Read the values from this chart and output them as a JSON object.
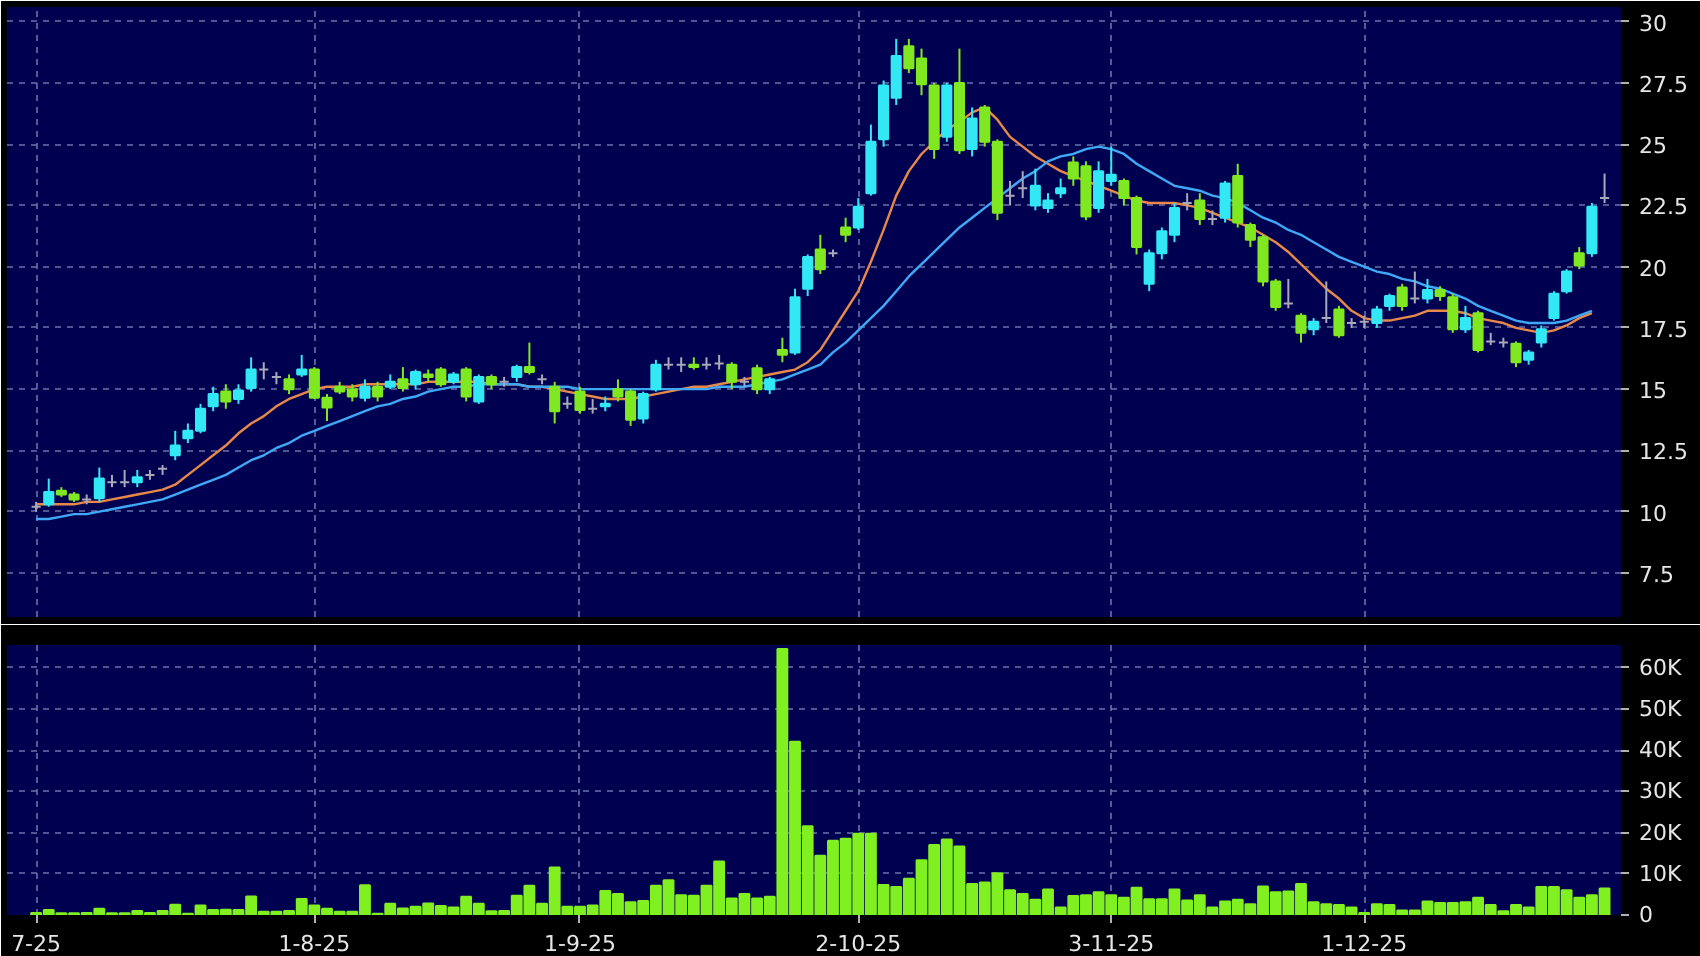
{
  "chart_data": [
    {
      "type": "candlestick",
      "categories": [
        null,
        null,
        null,
        null,
        null,
        null,
        null,
        null,
        null,
        null,
        null,
        null,
        null,
        null,
        null,
        null,
        null,
        null,
        null,
        null,
        null,
        null,
        null,
        null,
        null,
        null,
        null,
        null,
        null,
        null,
        null,
        null,
        null,
        null,
        null,
        null,
        null,
        null,
        null,
        null,
        null,
        null,
        null,
        null,
        null,
        null,
        null,
        null,
        null,
        null,
        null,
        null,
        null,
        null,
        null,
        null,
        null,
        null,
        null,
        null,
        null,
        null,
        null,
        null,
        null,
        null,
        null,
        null,
        null,
        null,
        null,
        null,
        null,
        null,
        null,
        null,
        null,
        null,
        null,
        null,
        null,
        null,
        null,
        null,
        null,
        null,
        null,
        null,
        null,
        null,
        null,
        null,
        null,
        null,
        null,
        null,
        null,
        null,
        null,
        null,
        null,
        null,
        null,
        null,
        null,
        null,
        null,
        null,
        null,
        null,
        null,
        null,
        null,
        null,
        null,
        null,
        null,
        null,
        null,
        null,
        null,
        null,
        null,
        null,
        null
      ],
      "ohlc": [
        [
          10.2,
          10.4,
          10.0,
          10.2
        ],
        [
          10.3,
          11.35,
          10.2,
          10.8
        ],
        [
          10.85,
          11.0,
          10.6,
          10.7
        ],
        [
          10.7,
          10.8,
          10.4,
          10.5
        ],
        [
          10.5,
          10.7,
          10.3,
          10.5
        ],
        [
          10.55,
          11.8,
          10.4,
          11.35
        ],
        [
          11.2,
          11.5,
          11.0,
          11.2
        ],
        [
          11.2,
          11.7,
          11.0,
          11.2
        ],
        [
          11.2,
          11.7,
          11.0,
          11.4
        ],
        [
          11.5,
          11.7,
          11.3,
          11.5
        ],
        [
          11.75,
          11.9,
          11.5,
          11.75
        ],
        [
          12.3,
          13.3,
          12.1,
          12.7
        ],
        [
          13.0,
          13.6,
          12.8,
          13.3
        ],
        [
          13.3,
          14.4,
          13.2,
          14.2
        ],
        [
          14.3,
          15.1,
          14.1,
          14.8
        ],
        [
          14.9,
          15.2,
          14.2,
          14.5
        ],
        [
          14.6,
          15.2,
          14.4,
          14.95
        ],
        [
          15.05,
          16.3,
          14.9,
          15.8
        ],
        [
          15.8,
          16.1,
          15.4,
          15.8
        ],
        [
          15.5,
          15.7,
          15.2,
          15.5
        ],
        [
          15.4,
          15.6,
          14.8,
          15.0
        ],
        [
          15.6,
          16.4,
          15.5,
          15.8
        ],
        [
          15.8,
          15.9,
          14.6,
          14.65
        ],
        [
          14.65,
          14.8,
          13.7,
          14.25
        ],
        [
          15.1,
          15.3,
          14.8,
          14.9
        ],
        [
          15.0,
          15.2,
          14.5,
          14.7
        ],
        [
          14.65,
          15.4,
          14.5,
          15.1
        ],
        [
          15.1,
          15.3,
          14.5,
          14.7
        ],
        [
          15.1,
          15.6,
          15.0,
          15.3
        ],
        [
          15.4,
          15.9,
          14.9,
          15.05
        ],
        [
          15.2,
          15.8,
          15.0,
          15.7
        ],
        [
          15.6,
          15.8,
          15.3,
          15.5
        ],
        [
          15.8,
          15.9,
          15.1,
          15.2
        ],
        [
          15.3,
          15.7,
          15.2,
          15.6
        ],
        [
          15.8,
          15.9,
          14.5,
          14.7
        ],
        [
          14.5,
          15.6,
          14.4,
          15.5
        ],
        [
          15.5,
          15.6,
          15.0,
          15.2
        ],
        [
          15.3,
          15.5,
          15.1,
          15.3
        ],
        [
          15.5,
          16.0,
          15.3,
          15.9
        ],
        [
          15.9,
          16.9,
          15.6,
          15.7
        ],
        [
          15.4,
          15.6,
          15.2,
          15.4
        ],
        [
          15.1,
          15.3,
          13.6,
          14.1
        ],
        [
          14.4,
          14.7,
          14.2,
          14.4
        ],
        [
          14.9,
          15.1,
          14.0,
          14.15
        ],
        [
          14.2,
          14.6,
          14.0,
          14.2
        ],
        [
          14.3,
          14.7,
          14.1,
          14.4
        ],
        [
          15.0,
          15.4,
          14.5,
          14.7
        ],
        [
          14.9,
          15.0,
          13.5,
          13.75
        ],
        [
          13.8,
          14.9,
          13.6,
          14.8
        ],
        [
          15.0,
          16.2,
          14.9,
          16.0
        ],
        [
          16.0,
          16.3,
          15.8,
          16.0
        ],
        [
          16.0,
          16.3,
          15.7,
          16.0
        ],
        [
          16.0,
          16.3,
          15.8,
          15.9
        ],
        [
          16.0,
          16.3,
          15.8,
          16.0
        ],
        [
          16.05,
          16.4,
          15.8,
          16.05
        ],
        [
          16.0,
          16.1,
          15.0,
          15.3
        ],
        [
          15.3,
          15.5,
          15.1,
          15.3
        ],
        [
          15.85,
          16.0,
          14.8,
          15.0
        ],
        [
          15.0,
          15.5,
          14.8,
          15.4
        ],
        [
          16.6,
          17.1,
          16.1,
          16.4
        ],
        [
          16.5,
          19.1,
          16.4,
          18.75
        ],
        [
          19.1,
          20.5,
          18.8,
          20.4
        ],
        [
          20.7,
          21.3,
          19.7,
          19.9
        ],
        [
          20.55,
          20.7,
          20.4,
          20.55
        ],
        [
          21.6,
          22.0,
          21.0,
          21.3
        ],
        [
          21.6,
          22.8,
          21.5,
          22.45
        ],
        [
          23.0,
          25.8,
          22.9,
          25.1
        ],
        [
          25.2,
          27.6,
          24.9,
          27.4
        ],
        [
          26.9,
          29.3,
          26.6,
          28.6
        ],
        [
          29.0,
          29.3,
          27.9,
          28.1
        ],
        [
          28.5,
          28.9,
          27.0,
          27.45
        ],
        [
          27.4,
          27.5,
          24.4,
          24.8
        ],
        [
          25.3,
          27.5,
          25.1,
          27.4
        ],
        [
          27.5,
          28.9,
          24.6,
          24.75
        ],
        [
          24.8,
          26.5,
          24.5,
          26.05
        ],
        [
          26.5,
          26.6,
          24.9,
          25.1
        ],
        [
          25.1,
          25.2,
          21.9,
          22.2
        ],
        [
          22.9,
          23.5,
          22.5,
          22.9
        ],
        [
          23.2,
          23.9,
          22.8,
          23.2
        ],
        [
          22.5,
          24.0,
          22.3,
          23.3
        ],
        [
          22.4,
          23.0,
          22.2,
          22.7
        ],
        [
          23.0,
          23.6,
          22.8,
          23.2
        ],
        [
          24.25,
          24.5,
          23.3,
          23.6
        ],
        [
          24.1,
          24.3,
          21.9,
          22.05
        ],
        [
          22.4,
          24.3,
          22.2,
          23.9
        ],
        [
          23.5,
          24.9,
          23.3,
          23.75
        ],
        [
          23.5,
          23.6,
          22.5,
          22.8
        ],
        [
          22.8,
          22.9,
          20.5,
          20.8
        ],
        [
          19.3,
          20.7,
          19.0,
          20.55
        ],
        [
          20.55,
          21.6,
          20.3,
          21.45
        ],
        [
          21.3,
          22.6,
          21.0,
          22.4
        ],
        [
          22.6,
          23.0,
          22.3,
          22.6
        ],
        [
          22.7,
          23.0,
          21.7,
          21.95
        ],
        [
          21.95,
          22.3,
          21.7,
          21.95
        ],
        [
          22.0,
          23.5,
          21.8,
          23.4
        ],
        [
          23.7,
          24.2,
          21.6,
          21.8
        ],
        [
          21.7,
          21.8,
          20.8,
          21.1
        ],
        [
          21.2,
          21.3,
          19.2,
          19.4
        ],
        [
          19.4,
          19.5,
          18.2,
          18.35
        ],
        [
          18.5,
          19.5,
          18.3,
          18.5
        ],
        [
          18.0,
          18.1,
          16.9,
          17.3
        ],
        [
          17.45,
          17.9,
          17.2,
          17.75
        ],
        [
          17.9,
          19.4,
          17.7,
          17.9
        ],
        [
          18.25,
          18.4,
          17.1,
          17.2
        ],
        [
          17.7,
          17.9,
          17.5,
          17.7
        ],
        [
          17.75,
          18.0,
          17.5,
          17.75
        ],
        [
          17.7,
          18.4,
          17.5,
          18.25
        ],
        [
          18.4,
          18.9,
          18.2,
          18.8
        ],
        [
          19.15,
          19.3,
          18.2,
          18.4
        ],
        [
          18.7,
          19.8,
          18.5,
          18.7
        ],
        [
          18.7,
          19.5,
          18.5,
          19.05
        ],
        [
          19.05,
          19.2,
          18.6,
          18.8
        ],
        [
          18.75,
          18.9,
          17.3,
          17.45
        ],
        [
          17.45,
          18.4,
          17.3,
          17.9
        ],
        [
          18.1,
          18.2,
          16.5,
          16.6
        ],
        [
          16.95,
          17.3,
          16.8,
          16.95
        ],
        [
          16.9,
          17.1,
          16.7,
          16.9
        ],
        [
          16.85,
          16.95,
          15.9,
          16.1
        ],
        [
          16.2,
          16.6,
          16.0,
          16.5
        ],
        [
          16.9,
          17.6,
          16.7,
          17.45
        ],
        [
          17.9,
          19.0,
          17.8,
          18.9
        ],
        [
          19.0,
          19.9,
          18.9,
          19.8
        ],
        [
          20.55,
          20.8,
          19.9,
          20.05
        ],
        [
          20.55,
          22.6,
          20.4,
          22.45
        ],
        [
          22.8,
          23.8,
          22.6,
          22.8
        ]
      ],
      "colors": [
        "#a8a8b8",
        "#33e8f5",
        "#80e820",
        "#80e820",
        "#a8a8b8",
        "#33e8f5",
        "#a8a8b8",
        "#a8a8b8",
        "#33e8f5",
        "#a8a8b8",
        "#a8a8b8",
        "#33e8f5",
        "#33e8f5",
        "#33e8f5",
        "#33e8f5",
        "#80e820",
        "#33e8f5",
        "#33e8f5",
        "#a8a8b8",
        "#a8a8b8",
        "#80e820",
        "#33e8f5",
        "#80e820",
        "#80e820",
        "#80e820",
        "#80e820",
        "#33e8f5",
        "#80e820",
        "#33e8f5",
        "#80e820",
        "#33e8f5",
        "#80e820",
        "#80e820",
        "#33e8f5",
        "#80e820",
        "#33e8f5",
        "#80e820",
        "#a8a8b8",
        "#33e8f5",
        "#80e820",
        "#a8a8b8",
        "#80e820",
        "#a8a8b8",
        "#80e820",
        "#a8a8b8",
        "#33e8f5",
        "#80e820",
        "#80e820",
        "#33e8f5",
        "#33e8f5",
        "#a8a8b8",
        "#a8a8b8",
        "#80e820",
        "#a8a8b8",
        "#a8a8b8",
        "#80e820",
        "#a8a8b8",
        "#80e820",
        "#33e8f5",
        "#80e820",
        "#33e8f5",
        "#33e8f5",
        "#80e820",
        "#a8a8b8",
        "#80e820",
        "#33e8f5",
        "#33e8f5",
        "#33e8f5",
        "#33e8f5",
        "#80e820",
        "#80e820",
        "#80e820",
        "#33e8f5",
        "#80e820",
        "#33e8f5",
        "#80e820",
        "#80e820",
        "#a8a8b8",
        "#a8a8b8",
        "#33e8f5",
        "#33e8f5",
        "#33e8f5",
        "#80e820",
        "#80e820",
        "#33e8f5",
        "#33e8f5",
        "#80e820",
        "#80e820",
        "#33e8f5",
        "#33e8f5",
        "#33e8f5",
        "#a8a8b8",
        "#80e820",
        "#a8a8b8",
        "#33e8f5",
        "#80e820",
        "#80e820",
        "#80e820",
        "#80e820",
        "#a8a8b8",
        "#80e820",
        "#33e8f5",
        "#a8a8b8",
        "#80e820",
        "#a8a8b8",
        "#a8a8b8",
        "#33e8f5",
        "#33e8f5",
        "#80e820",
        "#a8a8b8",
        "#33e8f5",
        "#80e820",
        "#80e820",
        "#33e8f5",
        "#80e820",
        "#a8a8b8",
        "#a8a8b8",
        "#80e820",
        "#33e8f5",
        "#33e8f5",
        "#33e8f5",
        "#33e8f5",
        "#80e820",
        "#33e8f5",
        "#a8a8b8"
      ],
      "series": [
        {
          "type": "line",
          "color": "#e8894a",
          "values": [
            10.3,
            10.3,
            10.3,
            10.3,
            10.4,
            10.4,
            10.5,
            10.6,
            10.7,
            10.8,
            10.9,
            11.1,
            11.5,
            11.9,
            12.3,
            12.7,
            13.2,
            13.6,
            13.9,
            14.3,
            14.6,
            14.8,
            15.0,
            15.1,
            15.1,
            15.1,
            15.2,
            15.2,
            15.2,
            15.2,
            15.2,
            15.3,
            15.3,
            15.3,
            15.3,
            15.3,
            15.2,
            15.2,
            15.2,
            15.1,
            15.1,
            15.0,
            14.9,
            14.8,
            14.7,
            14.6,
            14.6,
            14.6,
            14.7,
            14.8,
            14.9,
            15.0,
            15.1,
            15.1,
            15.2,
            15.3,
            15.4,
            15.5,
            15.6,
            15.7,
            15.8,
            16.1,
            16.6,
            17.4,
            18.2,
            19.0,
            20.2,
            21.5,
            22.9,
            23.9,
            24.6,
            25.1,
            25.6,
            25.9,
            26.3,
            26.5,
            26.0,
            25.3,
            24.9,
            24.5,
            24.2,
            23.9,
            23.7,
            23.5,
            23.3,
            23.1,
            22.9,
            22.7,
            22.6,
            22.6,
            22.6,
            22.5,
            22.4,
            22.2,
            22.0,
            21.8,
            21.6,
            21.3,
            21.0,
            20.6,
            20.1,
            19.6,
            19.1,
            18.7,
            18.2,
            17.9,
            17.8,
            17.8,
            17.9,
            18.0,
            18.2,
            18.2,
            18.2,
            18.1,
            17.9,
            17.8,
            17.7,
            17.5,
            17.4,
            17.3,
            17.4,
            17.6,
            17.9,
            18.1,
            null
          ]
        },
        {
          "type": "line",
          "color": "#3fa9f5",
          "values": [
            9.7,
            9.7,
            9.8,
            9.9,
            9.9,
            10.0,
            10.1,
            10.2,
            10.3,
            10.4,
            10.5,
            10.7,
            10.9,
            11.1,
            11.3,
            11.5,
            11.8,
            12.1,
            12.3,
            12.6,
            12.8,
            13.1,
            13.3,
            13.5,
            13.7,
            13.9,
            14.1,
            14.3,
            14.4,
            14.6,
            14.7,
            14.9,
            15.0,
            15.1,
            15.1,
            15.2,
            15.2,
            15.2,
            15.2,
            15.1,
            15.1,
            15.1,
            15.1,
            15.0,
            15.0,
            15.0,
            15.0,
            15.0,
            15.0,
            15.0,
            15.0,
            15.0,
            15.0,
            15.0,
            15.1,
            15.1,
            15.1,
            15.2,
            15.3,
            15.4,
            15.6,
            15.8,
            16.0,
            16.5,
            16.9,
            17.4,
            17.9,
            18.4,
            19.0,
            19.6,
            20.1,
            20.6,
            21.1,
            21.6,
            22.0,
            22.4,
            22.8,
            23.2,
            23.6,
            23.9,
            24.3,
            24.5,
            24.6,
            24.8,
            24.9,
            24.8,
            24.6,
            24.2,
            23.9,
            23.6,
            23.3,
            23.2,
            23.1,
            22.9,
            22.8,
            22.6,
            22.3,
            22.0,
            21.8,
            21.5,
            21.3,
            21.0,
            20.7,
            20.4,
            20.2,
            20.0,
            19.8,
            19.7,
            19.5,
            19.4,
            19.2,
            19.1,
            18.9,
            18.7,
            18.4,
            18.2,
            18.0,
            17.8,
            17.7,
            17.7,
            17.7,
            17.8,
            18.0,
            18.2,
            null
          ]
        }
      ],
      "ylim": [
        5.7,
        30.6
      ],
      "yticks": [
        7.5,
        10,
        12.5,
        15,
        17.5,
        20,
        22.5,
        25,
        27.5,
        30
      ],
      "grid": true,
      "tick_labels": "y"
    },
    {
      "type": "bar",
      "categories": [
        "7-25",
        null,
        null,
        null,
        null,
        null,
        null,
        null,
        null,
        null,
        null,
        null,
        null,
        null,
        null,
        null,
        null,
        null,
        null,
        null,
        null,
        null,
        "1-8-25",
        null,
        null,
        null,
        null,
        null,
        null,
        null,
        null,
        null,
        null,
        null,
        null,
        null,
        null,
        null,
        null,
        null,
        null,
        null,
        null,
        "1-9-25",
        null,
        null,
        null,
        null,
        null,
        null,
        null,
        null,
        null,
        null,
        null,
        null,
        null,
        null,
        null,
        null,
        null,
        null,
        null,
        null,
        null,
        "2-10-25",
        null,
        null,
        null,
        null,
        null,
        null,
        null,
        null,
        null,
        null,
        null,
        null,
        null,
        null,
        null,
        null,
        null,
        null,
        null,
        "3-11-25",
        null,
        null,
        null,
        null,
        null,
        null,
        null,
        null,
        null,
        null,
        null,
        null,
        null,
        null,
        null,
        null,
        null,
        null,
        null,
        "1-12-25",
        null,
        null,
        null,
        null,
        null,
        null,
        null,
        null,
        null,
        null,
        null,
        null,
        null,
        null,
        null,
        null,
        null,
        null,
        null
      ],
      "values": [
        500,
        1200,
        400,
        400,
        500,
        1500,
        400,
        400,
        1000,
        500,
        1000,
        2500,
        300,
        2300,
        1200,
        1300,
        1200,
        4500,
        800,
        800,
        1000,
        3900,
        2300,
        1500,
        800,
        800,
        7200,
        300,
        2700,
        1600,
        2000,
        2800,
        2200,
        1800,
        4400,
        2700,
        900,
        1000,
        4700,
        7100,
        2700,
        11500,
        2000,
        2000,
        2300,
        5800,
        5100,
        3100,
        3400,
        7100,
        8400,
        4800,
        4700,
        7100,
        13000,
        4000,
        5100,
        4000,
        4400,
        64500,
        42000,
        21500,
        14400,
        18000,
        18500,
        19700,
        19700,
        7300,
        6800,
        8800,
        13300,
        17000,
        18300,
        16600,
        7500,
        7900,
        10100,
        6000,
        5100,
        3700,
        6200,
        1800,
        4600,
        4800,
        5500,
        4800,
        4200,
        6600,
        3800,
        3800,
        6200,
        3500,
        4800,
        1800,
        3300,
        3700,
        2600,
        6900,
        5500,
        5700,
        7500,
        3100,
        2600,
        2400,
        1800,
        500,
        2600,
        2400,
        1100,
        1100,
        3300,
        2900,
        2900,
        3100,
        4200,
        2400,
        900,
        2400,
        1800,
        6800,
        6800,
        6000,
        4200,
        4800,
        6400
      ],
      "color": "#80f020",
      "ylim": [
        0,
        65500
      ],
      "yticks": [
        0,
        {
          "value": 10000,
          "label": "10K"
        },
        {
          "value": 20000,
          "label": "20K"
        },
        {
          "value": 30000,
          "label": "30K"
        },
        {
          "value": 40000,
          "label": "40K"
        },
        {
          "value": 50000,
          "label": "50K"
        },
        {
          "value": 60000,
          "label": "60K"
        }
      ],
      "grid": true
    }
  ]
}
